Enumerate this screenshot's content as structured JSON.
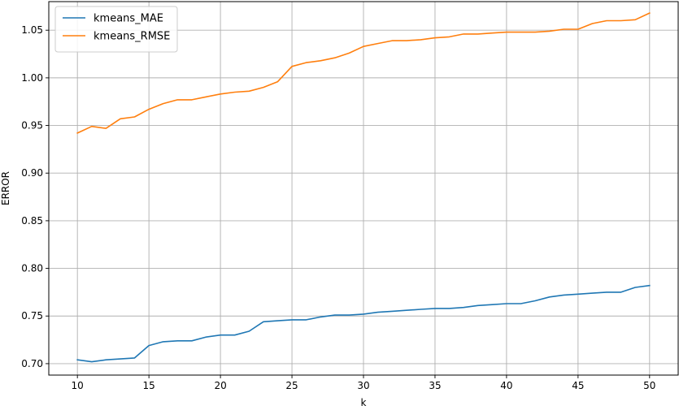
{
  "chart_data": {
    "type": "line",
    "title": "",
    "xlabel": "k",
    "ylabel": "ERROR",
    "xlim": [
      8,
      52
    ],
    "ylim": [
      0.688,
      1.08
    ],
    "x_ticks": [
      10,
      15,
      20,
      25,
      30,
      35,
      40,
      45,
      50
    ],
    "x_tick_labels": [
      "10",
      "15",
      "20",
      "25",
      "30",
      "35",
      "40",
      "45",
      "50"
    ],
    "y_ticks": [
      0.7,
      0.75,
      0.8,
      0.85,
      0.9,
      0.95,
      1.0,
      1.05
    ],
    "y_tick_labels": [
      "0.70",
      "0.75",
      "0.80",
      "0.85",
      "0.90",
      "0.95",
      "1.00",
      "1.05"
    ],
    "grid": true,
    "legend_position": "top-left",
    "x": [
      10,
      11,
      12,
      13,
      14,
      15,
      16,
      17,
      18,
      19,
      20,
      21,
      22,
      23,
      24,
      25,
      26,
      27,
      28,
      29,
      30,
      31,
      32,
      33,
      34,
      35,
      36,
      37,
      38,
      39,
      40,
      41,
      42,
      43,
      44,
      45,
      46,
      47,
      48,
      49,
      50
    ],
    "series": [
      {
        "name": "kmeans_MAE",
        "color": "#1f77b4",
        "values": [
          0.704,
          0.702,
          0.704,
          0.705,
          0.706,
          0.719,
          0.723,
          0.724,
          0.724,
          0.728,
          0.73,
          0.73,
          0.734,
          0.744,
          0.745,
          0.746,
          0.746,
          0.749,
          0.751,
          0.751,
          0.752,
          0.754,
          0.755,
          0.756,
          0.757,
          0.758,
          0.758,
          0.759,
          0.761,
          0.762,
          0.763,
          0.763,
          0.766,
          0.77,
          0.772,
          0.773,
          0.774,
          0.775,
          0.775,
          0.78,
          0.782
        ]
      },
      {
        "name": "kmeans_RMSE",
        "color": "#ff7f0e",
        "values": [
          0.942,
          0.949,
          0.947,
          0.957,
          0.959,
          0.967,
          0.973,
          0.977,
          0.977,
          0.98,
          0.983,
          0.985,
          0.986,
          0.99,
          0.996,
          1.012,
          1.016,
          1.018,
          1.021,
          1.026,
          1.033,
          1.036,
          1.039,
          1.039,
          1.04,
          1.042,
          1.043,
          1.046,
          1.046,
          1.047,
          1.048,
          1.048,
          1.048,
          1.049,
          1.051,
          1.051,
          1.057,
          1.06,
          1.06,
          1.061,
          1.068
        ]
      }
    ]
  }
}
